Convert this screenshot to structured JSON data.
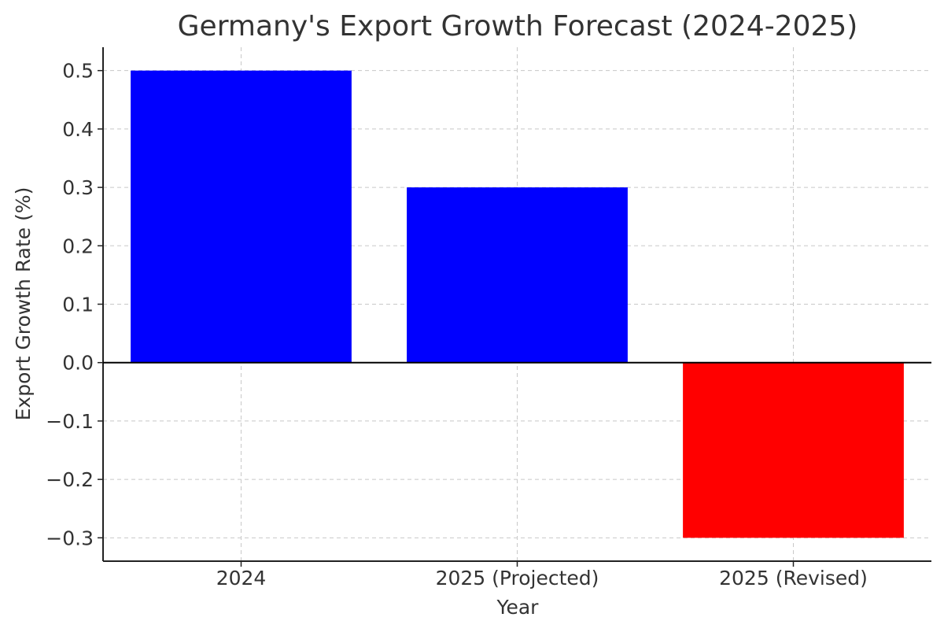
{
  "chart_data": {
    "type": "bar",
    "title": "Germany's Export Growth Forecast (2024-2025)",
    "xlabel": "Year",
    "ylabel": "Export Growth Rate (%)",
    "categories": [
      "2024",
      "2025 (Projected)",
      "2025 (Revised)"
    ],
    "values": [
      0.5,
      0.3,
      -0.3
    ],
    "colors": [
      "#0000ff",
      "#0000ff",
      "#ff0000"
    ],
    "ylim": [
      -0.34,
      0.54
    ],
    "yticks": [
      0.5,
      0.4,
      0.3,
      0.2,
      0.1,
      0.0,
      -0.1,
      -0.2,
      -0.3
    ],
    "ytick_labels": [
      "0.5",
      "0.4",
      "0.3",
      "0.2",
      "0.1",
      "0.0",
      "−0.1",
      "−0.2",
      "−0.3"
    ],
    "grid": true
  }
}
